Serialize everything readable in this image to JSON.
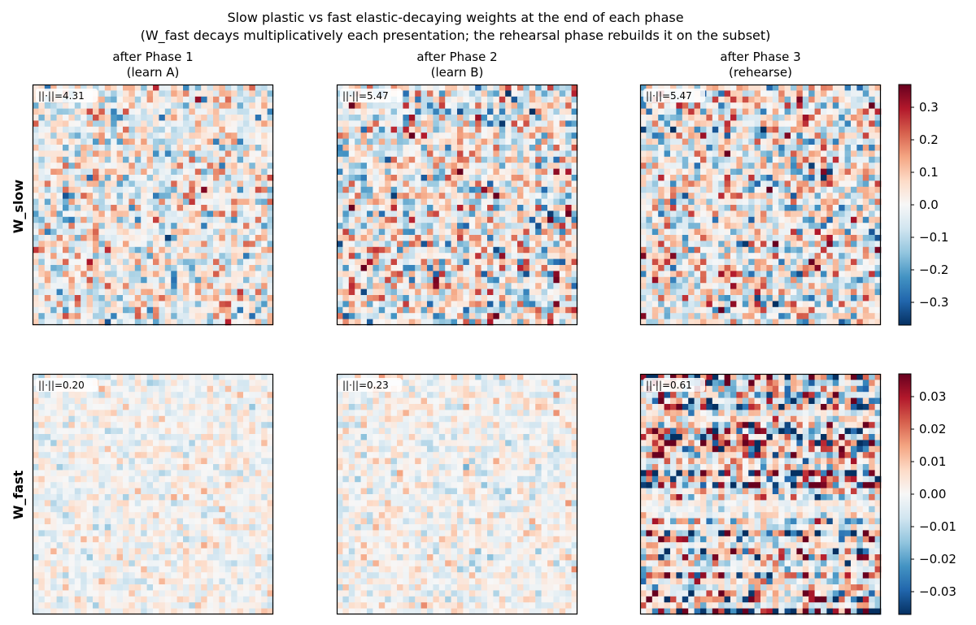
{
  "figure": {
    "title_line1": "Slow plastic vs fast elastic-decaying weights at the end of each phase",
    "title_line2": "(W_fast decays multiplicatively each presentation; the rehearsal phase rebuilds it on the subset)"
  },
  "colors": {
    "colormap": "RdBu_r",
    "low": "#053061",
    "mid": "#f7f7f7",
    "high": "#67001f",
    "axes": "#000000",
    "background": "#ffffff"
  },
  "chart_data": [
    {
      "type": "heatmap",
      "row": "W_slow",
      "col_title": [
        "after Phase 1",
        "(learn A)"
      ],
      "annotation": "||·||=4.31",
      "grid": false,
      "size": [
        40,
        40
      ],
      "color_range": [
        -0.37,
        0.37
      ],
      "norm": 4.31
    },
    {
      "type": "heatmap",
      "row": "W_slow",
      "col_title": [
        "after Phase 2",
        "(learn B)"
      ],
      "annotation": "||·||=5.47",
      "grid": false,
      "size": [
        40,
        40
      ],
      "color_range": [
        -0.37,
        0.37
      ],
      "norm": 5.47
    },
    {
      "type": "heatmap",
      "row": "W_slow",
      "col_title": [
        "after Phase 3",
        "(rehearse)"
      ],
      "annotation": "||·||=5.47",
      "grid": false,
      "size": [
        40,
        40
      ],
      "color_range": [
        -0.37,
        0.37
      ],
      "norm": 5.47
    },
    {
      "type": "heatmap",
      "row": "W_fast",
      "annotation": "||·||=0.20",
      "grid": false,
      "size": [
        40,
        40
      ],
      "color_range": [
        -0.037,
        0.037
      ],
      "norm": 0.2
    },
    {
      "type": "heatmap",
      "row": "W_fast",
      "annotation": "||·||=0.23",
      "grid": false,
      "size": [
        40,
        40
      ],
      "color_range": [
        -0.037,
        0.037
      ],
      "norm": 0.23
    },
    {
      "type": "heatmap",
      "row": "W_fast",
      "annotation": "||·||=0.61",
      "grid": false,
      "size": [
        40,
        40
      ],
      "color_range": [
        -0.037,
        0.037
      ],
      "norm": 0.61
    }
  ],
  "colorbars": [
    {
      "ticks": [
        "0.3",
        "0.2",
        "0.1",
        "0.0",
        "−0.1",
        "−0.2",
        "−0.3"
      ],
      "values": [
        0.3,
        0.2,
        0.1,
        0.0,
        -0.1,
        -0.2,
        -0.3
      ],
      "range": [
        -0.37,
        0.37
      ]
    },
    {
      "ticks": [
        "0.03",
        "0.02",
        "0.01",
        "0.00",
        "−0.01",
        "−0.02",
        "−0.03"
      ],
      "values": [
        0.03,
        0.02,
        0.01,
        0.0,
        -0.01,
        -0.02,
        -0.03
      ],
      "range": [
        -0.037,
        0.037
      ]
    }
  ]
}
